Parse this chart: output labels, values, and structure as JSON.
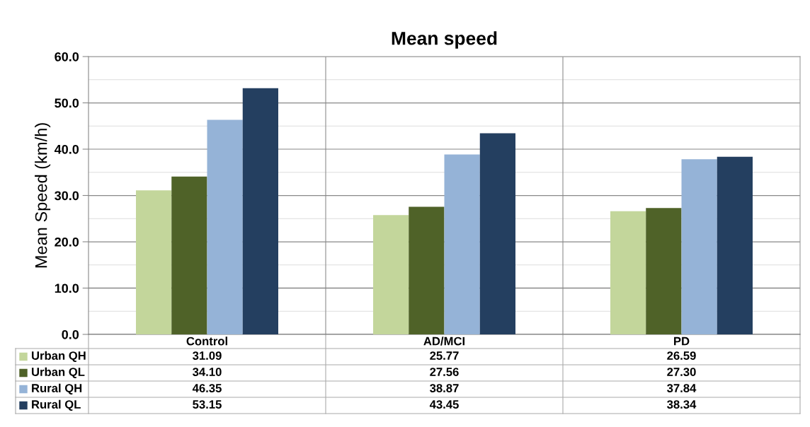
{
  "chart_data": {
    "type": "bar",
    "title": "Mean speed",
    "ylabel": "Mean Speed (km/h)",
    "categories": [
      "Control",
      "AD/MCI",
      "PD"
    ],
    "series": [
      {
        "name": "Urban QH",
        "color": "#c3d69b",
        "values": [
          31.09,
          25.77,
          26.59
        ],
        "value_labels": [
          "31.09",
          "25.77",
          "26.59"
        ]
      },
      {
        "name": "Urban QL",
        "color": "#4f6228",
        "values": [
          34.1,
          27.56,
          27.3
        ],
        "value_labels": [
          "34.10",
          "27.56",
          "27.30"
        ]
      },
      {
        "name": "Rural QH",
        "color": "#95b3d7",
        "values": [
          46.35,
          38.87,
          37.84
        ],
        "value_labels": [
          "46.35",
          "38.87",
          "37.84"
        ]
      },
      {
        "name": "Rural QL",
        "color": "#243f60",
        "values": [
          53.15,
          43.45,
          38.34
        ],
        "value_labels": [
          "53.15",
          "43.45",
          "38.34"
        ]
      }
    ],
    "ylim": [
      0,
      60
    ],
    "yticks": [
      {
        "value": 0,
        "label": "0.0"
      },
      {
        "value": 10,
        "label": "10.0"
      },
      {
        "value": 20,
        "label": "20.0"
      },
      {
        "value": 30,
        "label": "30.0"
      },
      {
        "value": 40,
        "label": "40.0"
      },
      {
        "value": 50,
        "label": "50.0"
      },
      {
        "value": 60,
        "label": "60.0"
      }
    ],
    "grid": "y",
    "legend": "bottom left"
  }
}
